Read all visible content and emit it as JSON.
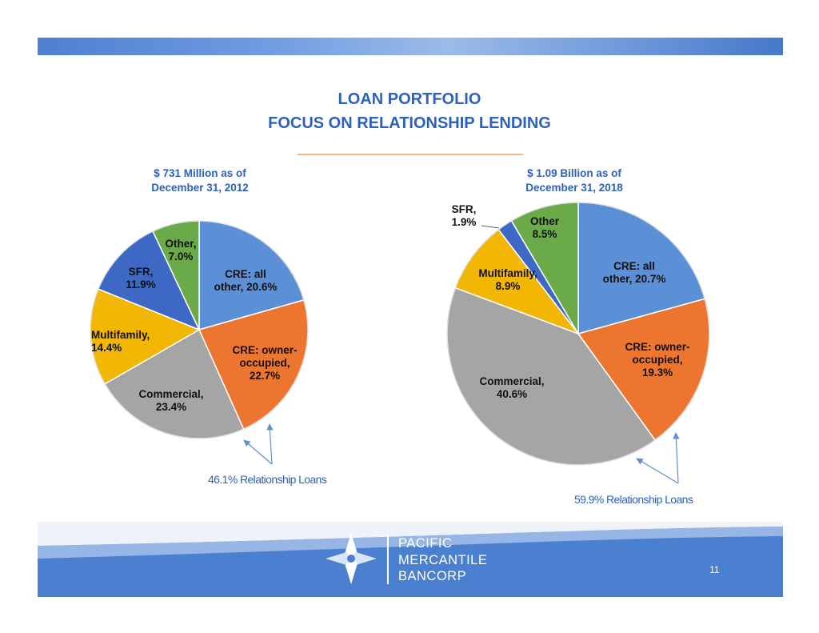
{
  "title": {
    "line1": "LOAN  PORTFOLIO",
    "line2": "FOCUS  ON RELATIONSHIP LENDING"
  },
  "chart_data": [
    {
      "type": "pie",
      "title_line1": "$ 731 Million as  of",
      "title_line2": "December 31,  2012",
      "slices": [
        {
          "label": "CRE: all other",
          "value": 20.6,
          "color": "#5b8fd6",
          "label_lines": [
            "CRE: all",
            "other, 20.6%"
          ]
        },
        {
          "label": "CRE: owner-occupied",
          "value": 22.7,
          "color": "#ec7630",
          "label_lines": [
            "CRE: owner-",
            "occupied,",
            "22.7%"
          ]
        },
        {
          "label": "Commercial",
          "value": 23.4,
          "color": "#a5a5a5",
          "label_lines": [
            "Commercial,",
            "23.4%"
          ]
        },
        {
          "label": "Multifamily",
          "value": 14.4,
          "color": "#f2b705",
          "label_lines": [
            "Multifamily,",
            "14.4%"
          ]
        },
        {
          "label": "SFR",
          "value": 11.9,
          "color": "#3d68c4",
          "label_lines": [
            "SFR,",
            "11.9%"
          ]
        },
        {
          "label": "Other",
          "value": 7.0,
          "color": "#6aaa48",
          "label_lines": [
            "Other,",
            "7.0%"
          ]
        }
      ],
      "annotation": "46.1% Relationship Loans"
    },
    {
      "type": "pie",
      "title_line1": "$ 1.09 Billion as  of",
      "title_line2": "December 31, 2018",
      "slices": [
        {
          "label": "CRE: all other",
          "value": 20.7,
          "color": "#5b8fd6",
          "label_lines": [
            "CRE: all",
            "other, 20.7%"
          ]
        },
        {
          "label": "CRE: owner-occupied",
          "value": 19.3,
          "color": "#ec7630",
          "label_lines": [
            "CRE: owner-",
            "occupied,",
            "19.3%"
          ]
        },
        {
          "label": "Commercial",
          "value": 40.6,
          "color": "#a5a5a5",
          "label_lines": [
            "Commercial,",
            "40.6%"
          ]
        },
        {
          "label": "Multifamily",
          "value": 8.9,
          "color": "#f2b705",
          "label_lines": [
            "Multifamily,",
            "8.9%"
          ]
        },
        {
          "label": "SFR",
          "value": 1.9,
          "color": "#3d68c4",
          "label_lines": [
            "SFR,",
            "1.9%"
          ]
        },
        {
          "label": "Other",
          "value": 8.5,
          "color": "#6aaa48",
          "label_lines": [
            "Other",
            "8.5%"
          ]
        }
      ],
      "annotation": "59.9% Relationship Loans"
    }
  ],
  "brand": {
    "line1": "PACIFIC",
    "line2": "MERCANTILE",
    "line3": "BANCORP"
  },
  "page_number": "11",
  "colors": {
    "accent_blue": "#2e62b8",
    "band_blue": "#4a80cf",
    "rule_orange": "#efb788"
  }
}
